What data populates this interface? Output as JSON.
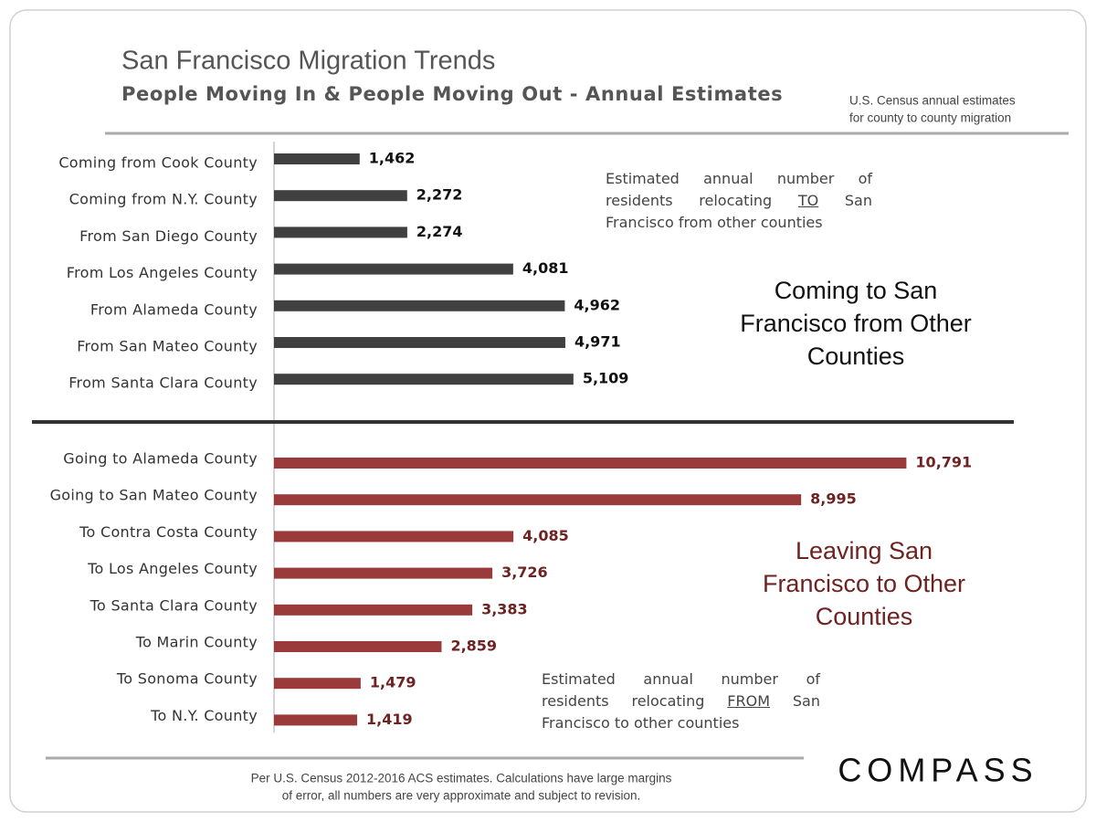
{
  "header": {
    "title": "San Francisco Migration Trends",
    "subtitle": "People Moving In & People Moving Out - Annual Estimates",
    "source_note": [
      "U.S. Census annual estimates",
      "for county to county migration"
    ]
  },
  "chart_data": [
    {
      "type": "bar",
      "orientation": "horizontal",
      "categories": [
        "Coming from Cook County",
        "Coming from N.Y. County",
        "From San Diego County",
        "From Los Angeles County",
        "From Alameda County",
        "From San Mateo County",
        "From Santa Clara County"
      ],
      "values": [
        1462,
        2272,
        2274,
        4081,
        4962,
        4971,
        5109
      ],
      "value_labels": [
        "1,462",
        "2,272",
        "2,274",
        "4,081",
        "4,962",
        "4,971",
        "5,109"
      ],
      "color": "#404040",
      "label_color": "#111111",
      "xlim": [
        0,
        12000
      ],
      "heading": [
        "Coming to San",
        "Francisco from Other",
        "Counties"
      ],
      "note": [
        "Estimated annual number of residents relocating ",
        "TO",
        " San Francisco from other counties"
      ]
    },
    {
      "type": "bar",
      "orientation": "horizontal",
      "categories": [
        "Going to Alameda County",
        "Going to San Mateo County",
        "To Contra Costa County",
        "To Los Angeles County",
        "To Santa Clara County",
        "To Marin County",
        "To Sonoma County",
        "To N.Y. County"
      ],
      "values": [
        10791,
        8995,
        4085,
        3726,
        3383,
        2859,
        1479,
        1419
      ],
      "value_labels": [
        "10,791",
        "8,995",
        "4,085",
        "3,726",
        "3,383",
        "2,859",
        "1,479",
        "1,419"
      ],
      "color": "#9b3a3a",
      "label_color": "#6e2222",
      "xlim": [
        0,
        12000
      ],
      "heading": [
        "Leaving San",
        "Francisco to Other",
        "Counties"
      ],
      "note": [
        "Estimated annual number of residents relocating ",
        "FROM",
        " San Francisco to other counties"
      ]
    }
  ],
  "footer": {
    "note": [
      "Per U.S. Census 2012-2016 ACS estimates. Calculations have large margins",
      "of error, all numbers are very approximate and subject to revision."
    ],
    "logo": "COMPASS"
  }
}
